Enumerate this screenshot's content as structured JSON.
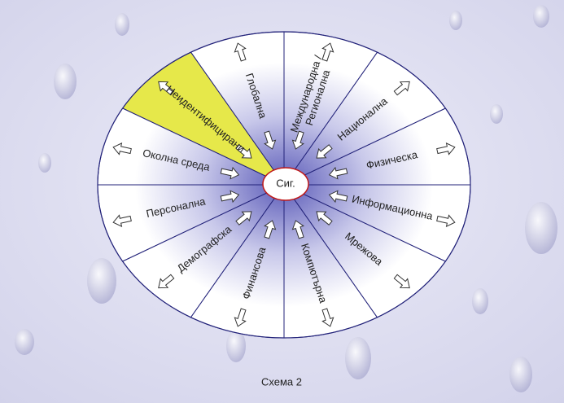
{
  "diagram": {
    "center": "Сиг.",
    "segments": [
      {
        "lines": [
          "Физическа"
        ]
      },
      {
        "lines": [
          "Национална"
        ]
      },
      {
        "lines": [
          "Международна /",
          "Регионална"
        ]
      },
      {
        "lines": [
          "Глобална"
        ]
      },
      {
        "lines": [
          "Неидентифицирани"
        ],
        "color": "#e6e84a"
      },
      {
        "lines": [
          "Околна среда"
        ]
      },
      {
        "lines": [
          "Персонална"
        ]
      },
      {
        "lines": [
          "Демографска"
        ]
      },
      {
        "lines": [
          "Финансова"
        ]
      },
      {
        "lines": [
          "Компютърна"
        ]
      },
      {
        "lines": [
          "Мрежова"
        ]
      },
      {
        "lines": [
          "Информационна"
        ]
      }
    ]
  },
  "caption": "Схема 2"
}
